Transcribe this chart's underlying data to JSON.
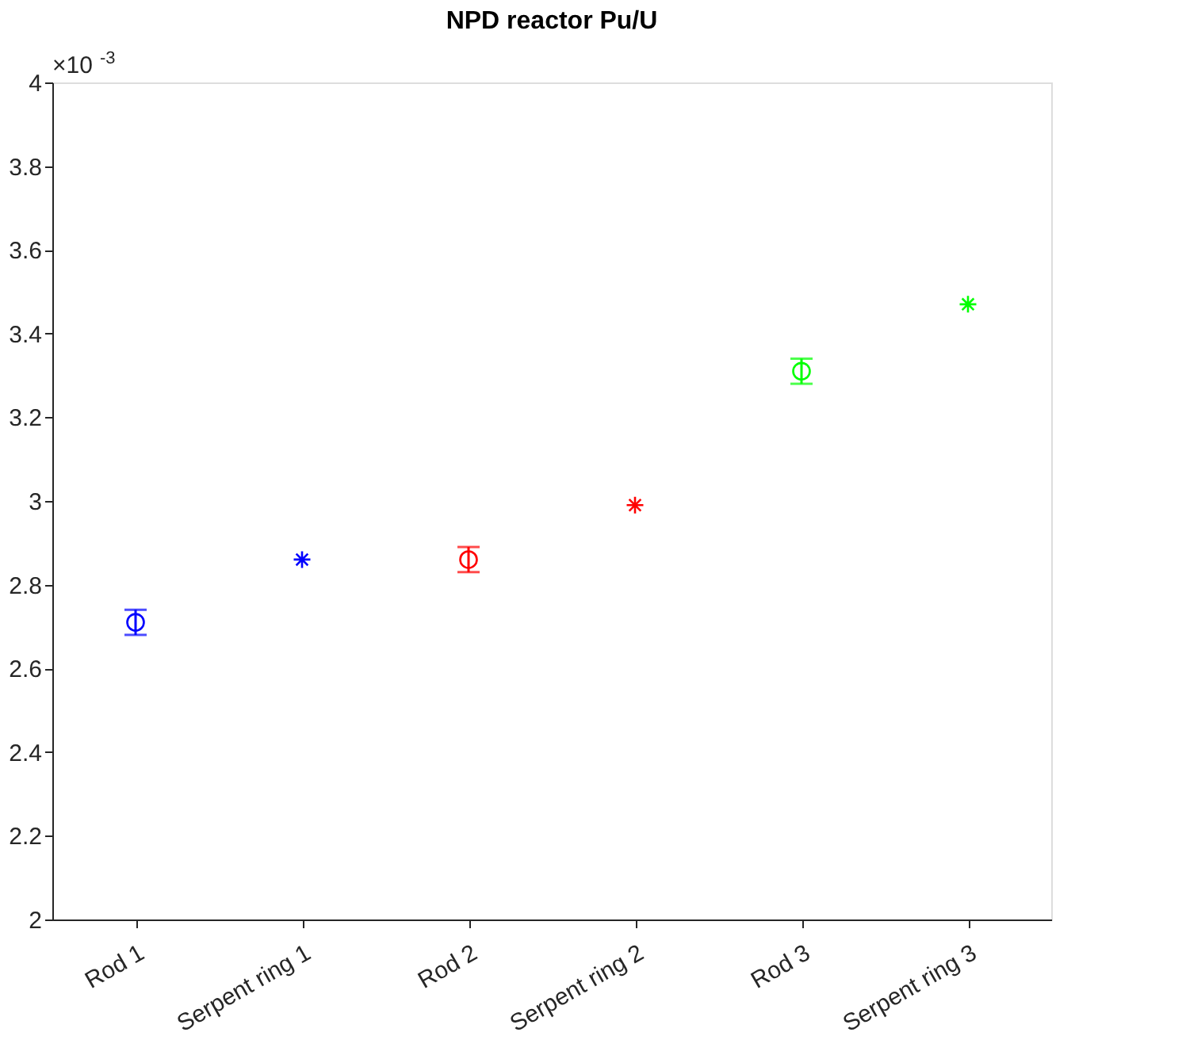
{
  "chart_data": {
    "type": "scatter",
    "title": "NPD reactor Pu/U",
    "annotations": [
      "×10$^{-3}$"
    ],
    "categories": [
      "Rod 1",
      "Serpent ring 1",
      "Rod 2",
      "Serpent ring 2",
      "Rod 3",
      "Serpent ring 3"
    ],
    "ylim": [
      2,
      4
    ],
    "yticks": [
      2,
      2.2,
      2.4,
      2.6,
      2.8,
      3,
      3.2,
      3.4,
      3.6,
      3.8,
      4
    ],
    "grid": false,
    "legend": false,
    "series": [
      {
        "marker": "circle",
        "x": [
          "Rod 1",
          "Rod 2",
          "Rod 3"
        ],
        "values": [
          2.71,
          2.86,
          3.31
        ],
        "errors": [
          0.03,
          0.03,
          0.03
        ],
        "colors": [
          "#0000ff",
          "#ff0000",
          "#00ff00"
        ]
      },
      {
        "marker": "cross",
        "x": [
          "Serpent ring 1",
          "Serpent ring 2",
          "Serpent ring 3"
        ],
        "values": [
          2.86,
          2.99,
          3.47
        ],
        "colors": [
          "#0000ff",
          "#ff0000",
          "#00ff00"
        ]
      }
    ]
  }
}
